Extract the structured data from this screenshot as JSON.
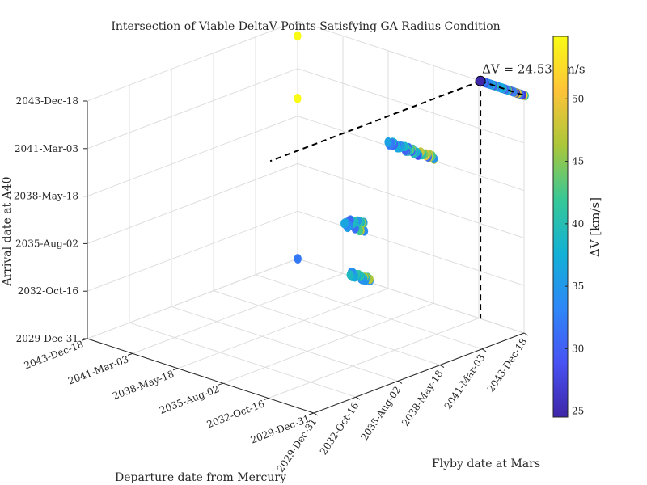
{
  "chart_data": {
    "type": "scatter3d",
    "title": "Intersection of Viable DeltaV Points Satisfying GA Radius Condition",
    "xlabel": "Departure date from Mercury",
    "ylabel": "Flyby date at Mars",
    "zlabel": "Arrival date at A40",
    "x_ticks": [
      "2029-Dec-31",
      "2032-Oct-16",
      "2035-Aug-02",
      "2038-May-18",
      "2041-Mar-03",
      "2043-Dec-18"
    ],
    "y_ticks": [
      "2029-Dec-31",
      "2032-Oct-16",
      "2035-Aug-02",
      "2038-May-18",
      "2041-Mar-03",
      "2043-Dec-18"
    ],
    "z_ticks": [
      "2029-Dec-31",
      "2032-Oct-16",
      "2035-Aug-02",
      "2038-May-18",
      "2041-Mar-03",
      "2043-Dec-18"
    ],
    "xlim": [
      "2029-Dec-31",
      "2043-Dec-18"
    ],
    "ylim": [
      "2029-Dec-31",
      "2043-Dec-18"
    ],
    "zlim": [
      "2029-Dec-31",
      "2043-Dec-18"
    ],
    "grid": true,
    "colorbar": {
      "label": "ΔV [km/s]",
      "colormap": "parula",
      "ticks": [
        25,
        30,
        35,
        40,
        45,
        50
      ],
      "range": [
        24.53,
        55
      ]
    },
    "annotation": {
      "text": "ΔV = 24.53 km/s",
      "departure": "2029-Dec-31",
      "flyby": "2041-Apr-10",
      "arrival": "2043-Dec-18",
      "deltav": 24.53
    },
    "clusters": [
      {
        "departure": [
          "2029-Dec-31",
          "2029-Dec-31"
        ],
        "flyby": [
          "2041-Apr-10",
          "2043-Dec-18"
        ],
        "arrival": [
          "2043-Dec-18",
          "2043-Dec-18"
        ],
        "deltav": [
          25,
          53
        ]
      },
      {
        "departure": [
          "2029-Dec-31",
          "2029-Dec-31"
        ],
        "flyby": [
          "2035-Aug-15",
          "2038-Jun-01"
        ],
        "arrival": [
          "2038-May-25",
          "2038-Sep-05"
        ],
        "deltav": [
          28,
          53
        ]
      },
      {
        "departure": [
          "2029-Dec-31",
          "2029-Dec-31"
        ],
        "flyby": [
          "2032-Nov-10",
          "2034-Feb-01"
        ],
        "arrival": [
          "2032-Oct-20",
          "2033-Jul-01"
        ],
        "deltav": [
          30,
          50
        ]
      },
      {
        "departure": [
          "2029-Dec-31",
          "2029-Dec-31"
        ],
        "flyby": [
          "2033-Apr-01",
          "2034-Jul-01"
        ],
        "arrival": [
          "2029-Dec-31",
          "2030-Apr-01"
        ],
        "deltav": [
          33,
          50
        ]
      },
      {
        "departure": [
          "2029-Dec-31",
          "2029-Dec-31"
        ],
        "flyby": [
          "2030-Jan-15",
          "2030-Jan-15"
        ],
        "arrival": [
          "2029-Dec-31",
          "2029-Dec-31"
        ],
        "deltav": [
          32,
          32
        ]
      }
    ],
    "outliers": [
      {
        "departure": "2029-Dec-31",
        "flyby": "2029-Dec-31",
        "arrival": "2043-Feb-01",
        "deltav": 55
      },
      {
        "departure": "2029-Dec-31",
        "flyby": "2029-Dec-31",
        "arrival": "2039-Jun-01",
        "deltav": 55
      }
    ]
  }
}
